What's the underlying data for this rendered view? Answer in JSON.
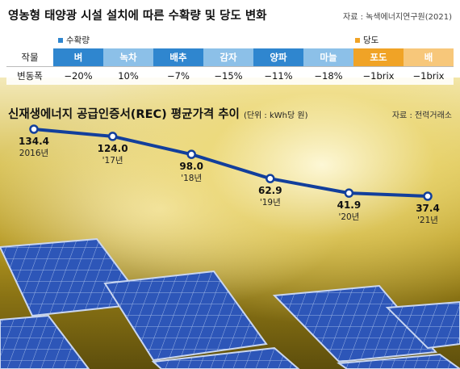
{
  "header": {
    "title": "영농형 태양광 시설 설치에 따른 수확량 및 당도 변화",
    "source": "자료 : 녹색에너지연구원(2021)",
    "legend_yield": "수확량",
    "legend_sugar": "당도",
    "row_label_crop": "작물",
    "row_label_change": "변동폭"
  },
  "crops": [
    {
      "name": "벼",
      "change": "−20%",
      "group": "yield"
    },
    {
      "name": "녹차",
      "change": "10%",
      "group": "yield"
    },
    {
      "name": "배추",
      "change": "−7%",
      "group": "yield"
    },
    {
      "name": "감자",
      "change": "−15%",
      "group": "yield"
    },
    {
      "name": "양파",
      "change": "−11%",
      "group": "yield"
    },
    {
      "name": "마늘",
      "change": "−18%",
      "group": "yield"
    },
    {
      "name": "포도",
      "change": "−1brix",
      "group": "sugar"
    },
    {
      "name": "배",
      "change": "−1brix",
      "group": "sugar"
    }
  ],
  "colors": {
    "yield_dark": "#2f86cf",
    "yield_light": "#8cc0e8",
    "sugar_dark": "#f0a326",
    "sugar_light": "#f7c77a",
    "line": "#123f9c"
  },
  "chart_data": {
    "type": "line",
    "title": "신재생에너지 공급인증서(REC) 평균가격 추이",
    "unit": "(단위 : kWh당 원)",
    "source": "자료 : 전력거래소",
    "x": [
      "2016년",
      "'17년",
      "'18년",
      "'19년",
      "'20년",
      "'21년"
    ],
    "values": [
      134.4,
      124.0,
      98.0,
      62.9,
      41.9,
      37.4
    ],
    "value_labels": [
      "134.4",
      "124.0",
      "98.0",
      "62.9",
      "41.9",
      "37.4"
    ]
  }
}
